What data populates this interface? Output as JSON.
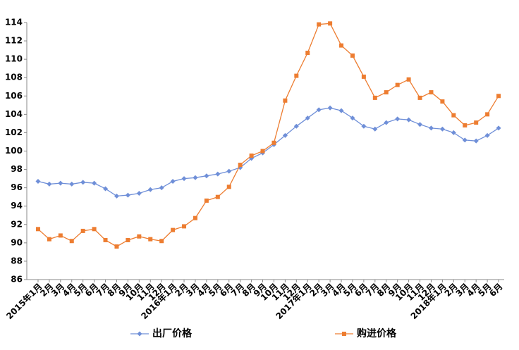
{
  "chart_data": {
    "type": "line",
    "categories": [
      "2015年1月",
      "2月",
      "3月",
      "4月",
      "5月",
      "6月",
      "7月",
      "8月",
      "9月",
      "10月",
      "11月",
      "12月",
      "2016年1月",
      "2月",
      "3月",
      "4月",
      "5月",
      "6月",
      "7月",
      "8月",
      "9月",
      "10月",
      "11月",
      "12月",
      "2017年1月",
      "2月",
      "3月",
      "4月",
      "5月",
      "6月",
      "7月",
      "8月",
      "9月",
      "10月",
      "11月",
      "12月",
      "2018年1月",
      "2月",
      "3月",
      "4月",
      "5月",
      "6月"
    ],
    "series": [
      {
        "name": "出厂价格",
        "color": "#6f8fd8",
        "marker": "diamond",
        "values": [
          96.7,
          96.4,
          96.5,
          96.4,
          96.6,
          96.5,
          95.9,
          95.1,
          95.2,
          95.4,
          95.8,
          96.0,
          96.7,
          97.0,
          97.1,
          97.3,
          97.5,
          97.8,
          98.2,
          99.2,
          99.8,
          100.7,
          101.7,
          102.7,
          103.6,
          104.5,
          104.7,
          104.4,
          103.6,
          102.7,
          102.4,
          103.1,
          103.5,
          103.4,
          102.9,
          102.5,
          102.4,
          102.0,
          101.2,
          101.1,
          101.7,
          102.5
        ]
      },
      {
        "name": "购进价格",
        "color": "#ed7d31",
        "marker": "square",
        "values": [
          91.5,
          90.4,
          90.8,
          90.2,
          91.3,
          91.5,
          90.3,
          89.6,
          90.3,
          90.7,
          90.4,
          90.2,
          91.4,
          91.8,
          92.7,
          94.6,
          95.0,
          96.1,
          98.5,
          99.5,
          100.0,
          100.9,
          105.5,
          108.2,
          110.7,
          113.8,
          113.9,
          111.5,
          110.4,
          108.1,
          105.8,
          106.4,
          107.2,
          107.8,
          105.8,
          106.4,
          105.4,
          103.9,
          102.8,
          103.1,
          104.0,
          106.0
        ]
      }
    ],
    "ylim": [
      86,
      114
    ],
    "yticks": [
      86,
      88,
      90,
      92,
      94,
      96,
      98,
      100,
      102,
      104,
      106,
      108,
      110,
      112,
      114
    ],
    "grid": false,
    "legend": "bottom"
  }
}
